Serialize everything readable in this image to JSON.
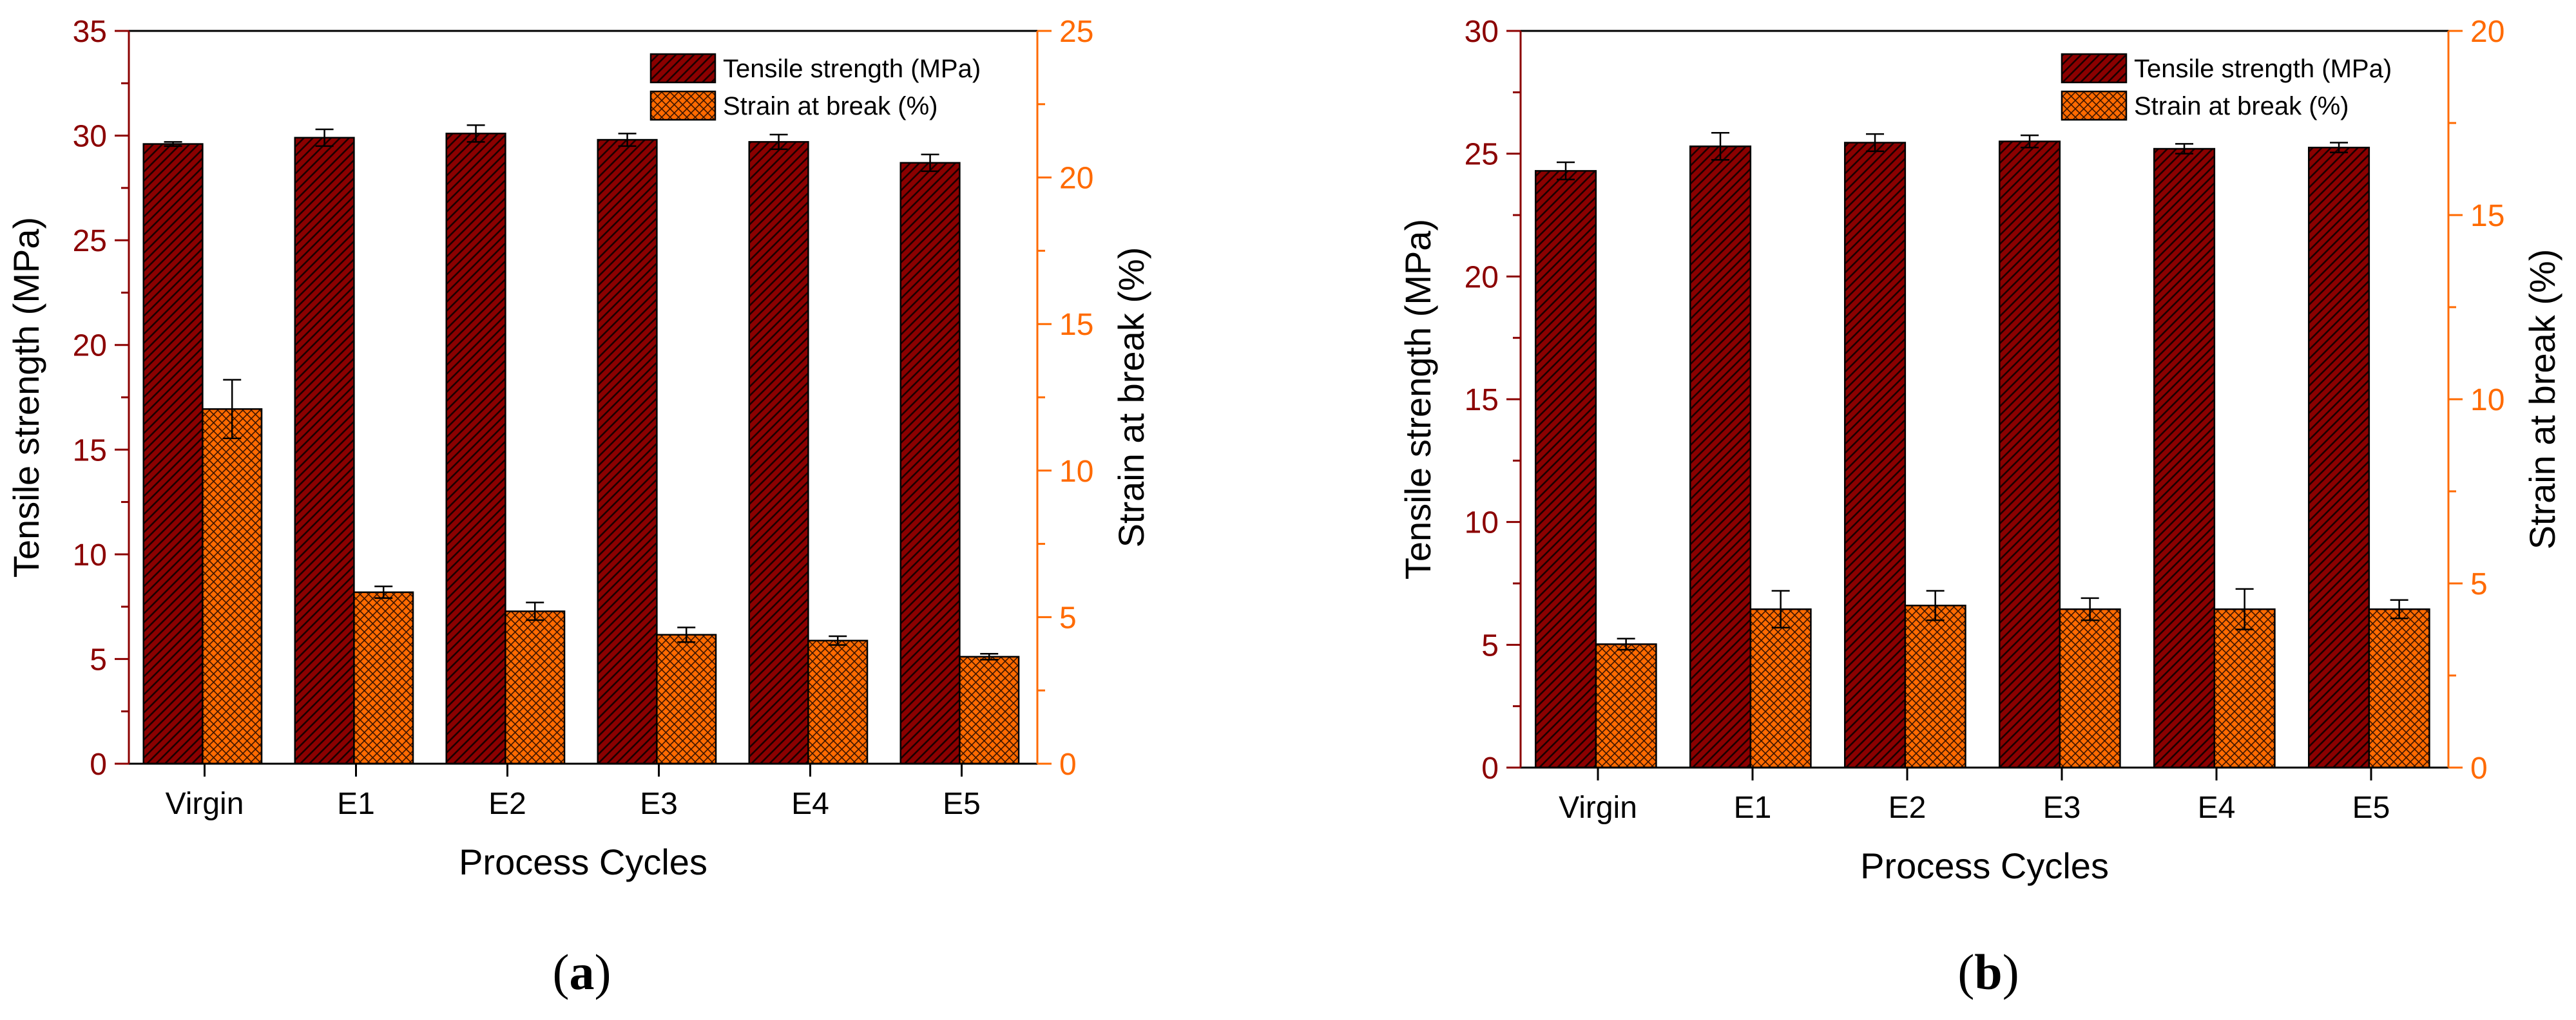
{
  "chart_data": [
    {
      "panel": "a",
      "sub_label": "a",
      "type": "bar",
      "categories": [
        "Virgin",
        "E1",
        "E2",
        "E3",
        "E4",
        "E5"
      ],
      "xlabel": "Process Cycles",
      "ylabel_left": "Tensile strength (MPa)",
      "ylabel_right": "Strain at break (%)",
      "ylim_left": [
        0,
        35
      ],
      "ylim_right": [
        0,
        25
      ],
      "yticks_left": [
        0,
        5,
        10,
        15,
        20,
        25,
        30,
        35
      ],
      "yticks_right": [
        0,
        5,
        10,
        15,
        20,
        25
      ],
      "legend": [
        "Tensile strength (MPa)",
        "Strain at break (%)"
      ],
      "legend_position": "top-right",
      "series": [
        {
          "name": "Tensile strength (MPa)",
          "axis": "left",
          "color": "#8b0000",
          "values": [
            29.6,
            29.9,
            30.1,
            29.8,
            29.7,
            28.7
          ],
          "errors": [
            0.1,
            0.4,
            0.4,
            0.3,
            0.35,
            0.4
          ]
        },
        {
          "name": "Strain at break (%)",
          "axis": "right",
          "color": "#ff6a00",
          "values": [
            12.1,
            5.85,
            5.2,
            4.4,
            4.2,
            3.65
          ],
          "errors": [
            1.0,
            0.2,
            0.3,
            0.25,
            0.15,
            0.1
          ]
        }
      ]
    },
    {
      "panel": "b",
      "sub_label": "b",
      "type": "bar",
      "categories": [
        "Virgin",
        "E1",
        "E2",
        "E3",
        "E4",
        "E5"
      ],
      "xlabel": "Process Cycles",
      "ylabel_left": "Tensile strength (MPa)",
      "ylabel_right": "Strain at break (%)",
      "ylim_left": [
        0,
        30
      ],
      "ylim_right": [
        0,
        20
      ],
      "yticks_left": [
        0,
        5,
        10,
        15,
        20,
        25,
        30
      ],
      "yticks_right": [
        0,
        5,
        10,
        15,
        20
      ],
      "legend": [
        "Tensile strength (MPa)",
        "Strain at break (%)"
      ],
      "legend_position": "top-right",
      "series": [
        {
          "name": "Tensile strength (MPa)",
          "axis": "left",
          "color": "#8b0000",
          "values": [
            24.3,
            25.3,
            25.45,
            25.5,
            25.2,
            25.25
          ],
          "errors": [
            0.35,
            0.55,
            0.35,
            0.25,
            0.2,
            0.2
          ]
        },
        {
          "name": "Strain at break (%)",
          "axis": "right",
          "color": "#ff6a00",
          "values": [
            3.35,
            4.3,
            4.4,
            4.3,
            4.3,
            4.3
          ],
          "errors": [
            0.15,
            0.5,
            0.4,
            0.3,
            0.55,
            0.25
          ]
        }
      ]
    }
  ]
}
